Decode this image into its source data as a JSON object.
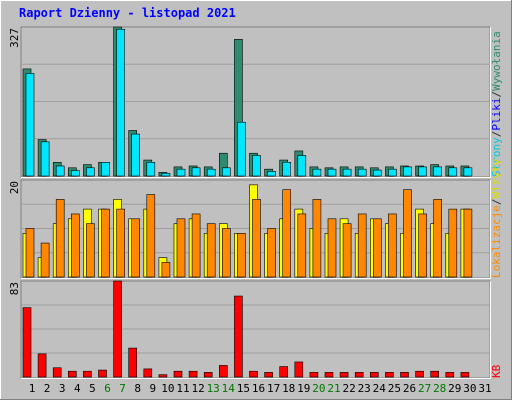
{
  "title": "Raport Dzienny -  listopad 2021",
  "colors": {
    "title": "#0000ff",
    "frame_bg": "#c0c0c0",
    "plot_bg": "#c0c0c0",
    "grid": "#a0a0a0",
    "weekend_label": "#007700",
    "hits": "#00a060",
    "pages": "#00e6ff",
    "files": "#2e8b72",
    "visits": "#ffff00",
    "sites": "#ff8800",
    "kb": "#ff0000",
    "dark_label": "#333333",
    "blue_label": "#0000ff"
  },
  "right_labels": {
    "top": [
      "Wywołania",
      "Pliki",
      "Strony"
    ],
    "sep": "/",
    "middle": [
      "Lokalizacje",
      "Wizyty"
    ],
    "bottom": "KB"
  },
  "chart_data": [
    {
      "type": "bar",
      "name": "hits-files-pages",
      "ymax_label": "327",
      "ylim": [
        0,
        327
      ],
      "grid": true,
      "x": [
        1,
        2,
        3,
        4,
        5,
        6,
        7,
        8,
        9,
        10,
        11,
        12,
        13,
        14,
        15,
        16,
        17,
        18,
        19,
        20,
        21,
        22,
        23,
        24,
        25,
        26,
        27,
        28,
        29,
        30,
        31
      ],
      "series": [
        {
          "name": "Wywołania",
          "color": "#2e8b72",
          "values": [
            235,
            80,
            30,
            18,
            25,
            30,
            327,
            100,
            35,
            8,
            20,
            22,
            20,
            50,
            300,
            50,
            15,
            35,
            55,
            20,
            18,
            20,
            20,
            18,
            20,
            22,
            22,
            25,
            22,
            22,
            0
          ]
        },
        {
          "name": "Strony",
          "color": "#00e6ff",
          "values": [
            225,
            75,
            22,
            12,
            18,
            30,
            322,
            92,
            30,
            6,
            15,
            18,
            15,
            18,
            118,
            45,
            10,
            30,
            45,
            15,
            15,
            15,
            15,
            13,
            15,
            20,
            20,
            20,
            18,
            18,
            0
          ]
        }
      ]
    },
    {
      "type": "bar",
      "name": "visits-sites",
      "ymax_label": "20",
      "ylim": [
        0,
        20
      ],
      "grid": true,
      "x": [
        1,
        2,
        3,
        4,
        5,
        6,
        7,
        8,
        9,
        10,
        11,
        12,
        13,
        14,
        15,
        16,
        17,
        18,
        19,
        20,
        21,
        22,
        23,
        24,
        25,
        26,
        27,
        28,
        29,
        30,
        31
      ],
      "series": [
        {
          "name": "Wizyty",
          "color": "#ffff00",
          "values": [
            9,
            4,
            11,
            12,
            14,
            14,
            16,
            12,
            14,
            4,
            11,
            12,
            9,
            11,
            9,
            19,
            9,
            12,
            14,
            10,
            9,
            12,
            9,
            12,
            11,
            9,
            14,
            11,
            9,
            14,
            0
          ]
        },
        {
          "name": "Lokalizacje",
          "color": "#ff8800",
          "values": [
            10,
            7,
            16,
            13,
            11,
            14,
            14,
            12,
            17,
            3,
            12,
            13,
            11,
            10,
            9,
            16,
            10,
            18,
            13,
            16,
            12,
            11,
            13,
            12,
            13,
            18,
            13,
            16,
            14,
            14,
            0
          ]
        }
      ]
    },
    {
      "type": "bar",
      "name": "kb",
      "ymax_label": "83",
      "ylim": [
        0,
        83
      ],
      "grid": true,
      "x": [
        1,
        2,
        3,
        4,
        5,
        6,
        7,
        8,
        9,
        10,
        11,
        12,
        13,
        14,
        15,
        16,
        17,
        18,
        19,
        20,
        21,
        22,
        23,
        24,
        25,
        26,
        27,
        28,
        29,
        30,
        31
      ],
      "series": [
        {
          "name": "KB",
          "color": "#ff0000",
          "values": [
            60,
            20,
            8,
            5,
            5,
            6,
            83,
            25,
            7,
            2,
            5,
            5,
            4,
            10,
            70,
            5,
            4,
            9,
            13,
            4,
            4,
            4,
            4,
            4,
            4,
            4,
            5,
            5,
            4,
            4,
            0
          ]
        }
      ]
    }
  ],
  "x_labels": [
    "1",
    "2",
    "3",
    "4",
    "5",
    "6",
    "7",
    "8",
    "9",
    "10",
    "11",
    "12",
    "13",
    "14",
    "15",
    "16",
    "17",
    "18",
    "19",
    "20",
    "21",
    "22",
    "23",
    "24",
    "25",
    "26",
    "27",
    "28",
    "29",
    "30",
    "31"
  ],
  "weekend_days": [
    6,
    7,
    13,
    14,
    20,
    21,
    27,
    28
  ]
}
